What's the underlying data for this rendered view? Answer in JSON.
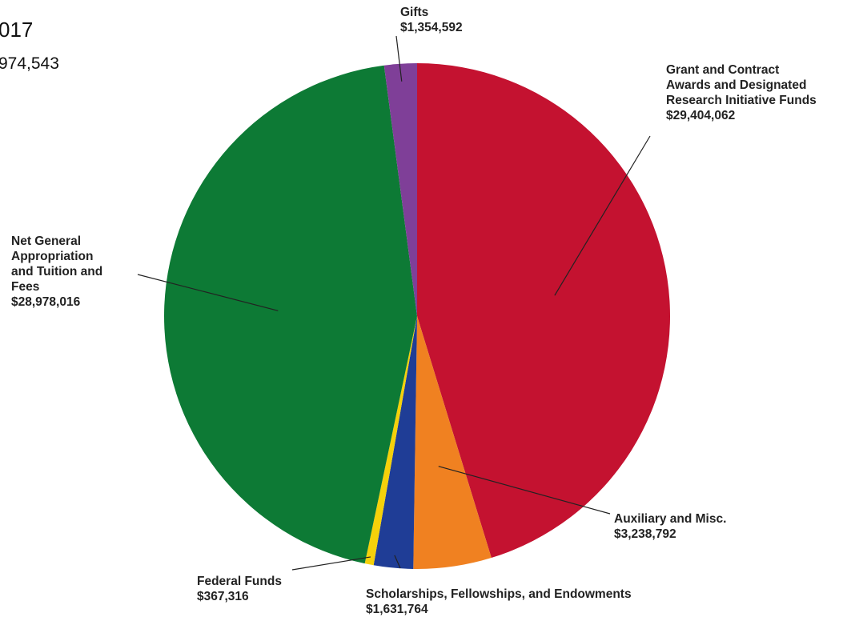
{
  "header": {
    "title": "017",
    "total": "974,543"
  },
  "chart_data": {
    "type": "pie",
    "title": "",
    "legend": "none",
    "slices": [
      {
        "label_lines": [
          "Grant and Contract",
          "Awards and Designated",
          "Research Initiative Funds"
        ],
        "value": 29404062,
        "value_text": "$29,404,062",
        "color": "#c41230"
      },
      {
        "label_lines": [
          "Auxiliary and Misc."
        ],
        "value": 3238792,
        "value_text": "$3,238,792",
        "color": "#f08121"
      },
      {
        "label_lines": [
          "Scholarships, Fellowships, and Endowments"
        ],
        "value": 1631764,
        "value_text": "$1,631,764",
        "color": "#1f3d96"
      },
      {
        "label_lines": [
          "Federal Funds"
        ],
        "value": 367316,
        "value_text": "$367,316",
        "color": "#f5d10a"
      },
      {
        "label_lines": [
          "Net General",
          "Appropriation",
          "and Tuition and",
          "Fees"
        ],
        "value": 28978016,
        "value_text": "$28,978,016",
        "color": "#0d7a35"
      },
      {
        "label_lines": [
          "Gifts"
        ],
        "value": 1354592,
        "value_text": "$1,354,592",
        "color": "#7f3f98"
      }
    ]
  }
}
